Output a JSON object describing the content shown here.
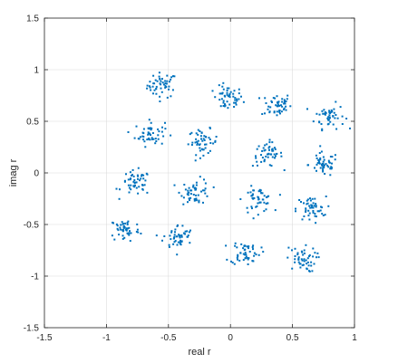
{
  "chart_data": {
    "type": "scatter",
    "title": "",
    "xlabel": "real r",
    "ylabel": "imag r",
    "xlim": [
      -1.5,
      1
    ],
    "ylim": [
      -1.5,
      1.5
    ],
    "xticks": [
      -1.5,
      -1,
      -0.5,
      0,
      0.5,
      1
    ],
    "xtick_labels": [
      "-1.5",
      "-1",
      "-0.5",
      "0",
      "0.5",
      "1"
    ],
    "yticks": [
      -1.5,
      -1,
      -0.5,
      0,
      0.5,
      1,
      1.5
    ],
    "ytick_labels": [
      "-1.5",
      "-1",
      "-0.5",
      "0",
      "0.5",
      "1",
      "1.5"
    ],
    "grid": true,
    "marker_color": "#0072BD",
    "points_per_cluster": 50,
    "cluster_spread": 0.06,
    "cluster_centers": [
      {
        "x": -0.55,
        "y": 0.85
      },
      {
        "x": -0.02,
        "y": 0.72
      },
      {
        "x": 0.37,
        "y": 0.66
      },
      {
        "x": 0.8,
        "y": 0.55
      },
      {
        "x": -0.65,
        "y": 0.38
      },
      {
        "x": -0.22,
        "y": 0.3
      },
      {
        "x": 0.3,
        "y": 0.18
      },
      {
        "x": 0.75,
        "y": 0.08
      },
      {
        "x": -0.76,
        "y": -0.1
      },
      {
        "x": -0.28,
        "y": -0.18
      },
      {
        "x": 0.22,
        "y": -0.26
      },
      {
        "x": 0.65,
        "y": -0.35
      },
      {
        "x": -0.85,
        "y": -0.55
      },
      {
        "x": -0.42,
        "y": -0.62
      },
      {
        "x": 0.12,
        "y": -0.77
      },
      {
        "x": 0.57,
        "y": -0.84
      }
    ]
  }
}
